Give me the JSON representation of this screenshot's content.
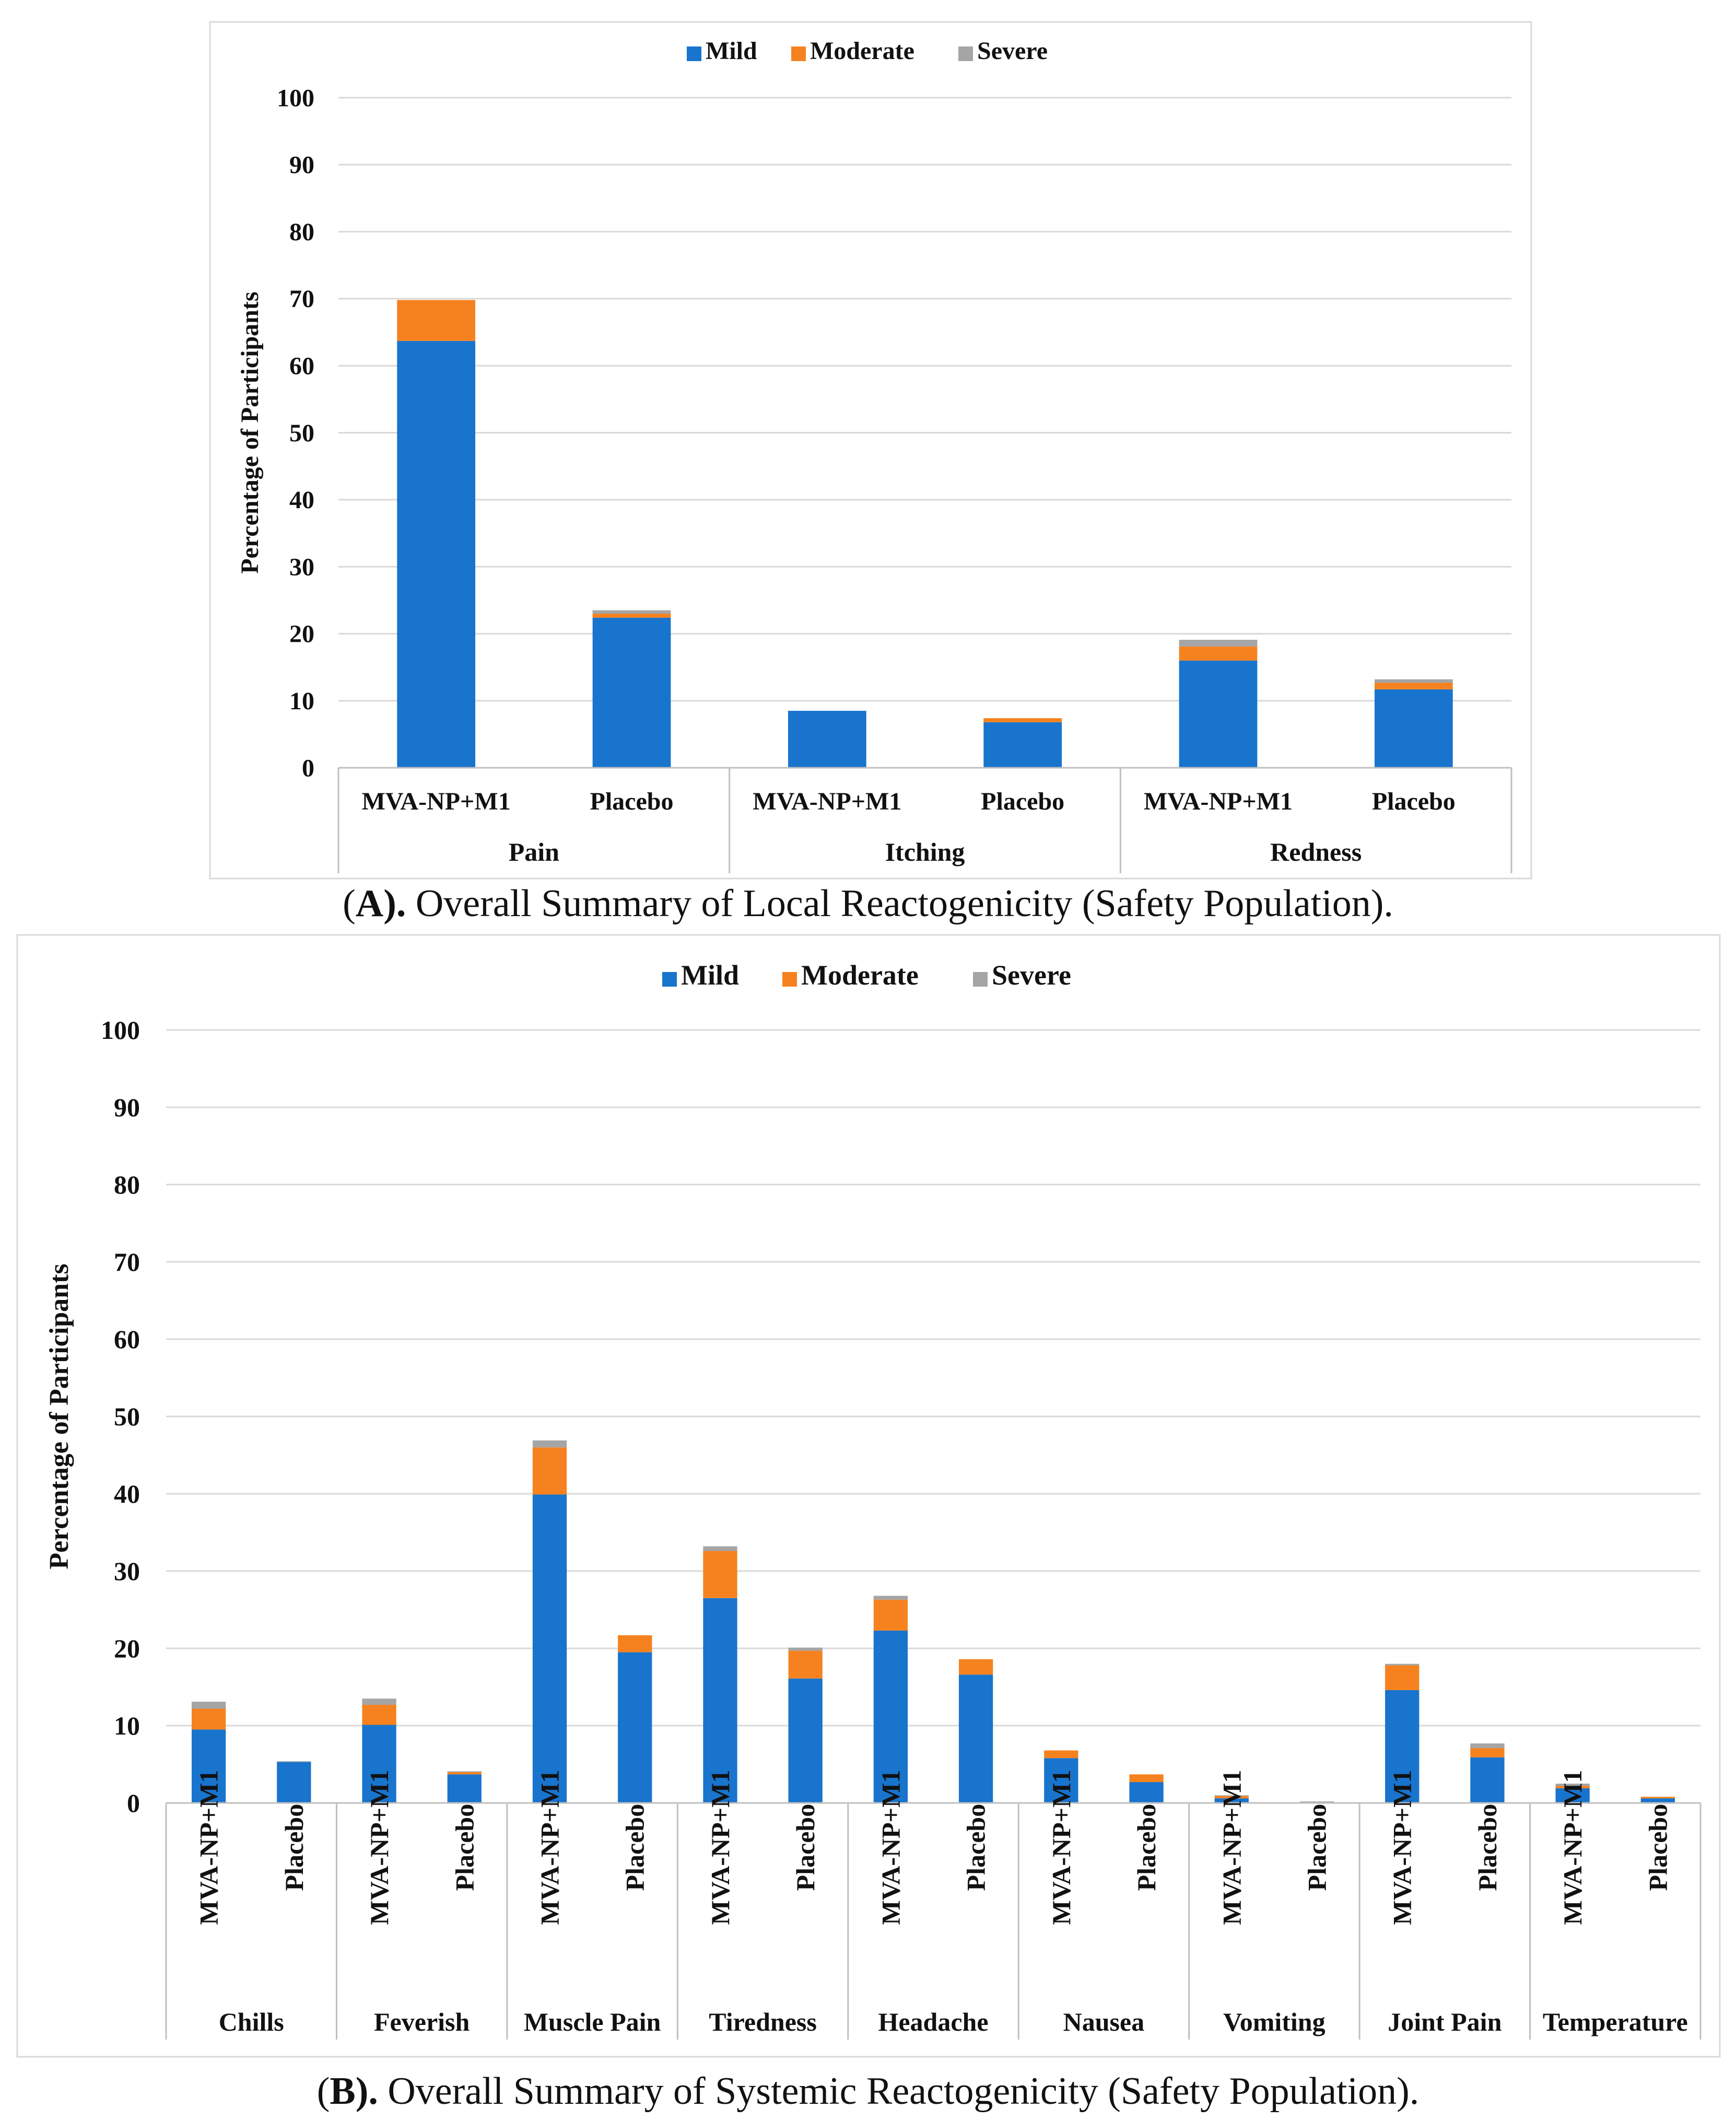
{
  "colors": {
    "mild": "#1874CD",
    "moderate": "#F5821F",
    "severe": "#A5A5A5",
    "grid": "#D9D9D9",
    "axis": "#BFBFBF",
    "frame": "#D9D9D9"
  },
  "panelA": {
    "caption_letter": "A",
    "caption_close": ").",
    "caption_text": " Overall Summary of Local Reactogenicity (Safety Population).",
    "chart_data": {
      "type": "bar",
      "stacked": true,
      "title": "",
      "ylabel": "Percentage of Participants",
      "ylim": [
        0,
        100
      ],
      "yticks": [
        0,
        10,
        20,
        30,
        40,
        50,
        60,
        70,
        80,
        90,
        100
      ],
      "legend": [
        "Mild",
        "Moderate",
        "Severe"
      ],
      "legend_position": "top-center",
      "groups": [
        "Pain",
        "Itching",
        "Redness"
      ],
      "categories": [
        "MVA-NP+M1",
        "Placebo",
        "MVA-NP+M1",
        "Placebo",
        "MVA-NP+M1",
        "Placebo"
      ],
      "series": [
        {
          "name": "Mild",
          "values": [
            63.7,
            22.4,
            8.5,
            6.8,
            16.0,
            11.7
          ]
        },
        {
          "name": "Moderate",
          "values": [
            6.1,
            0.6,
            0.0,
            0.6,
            2.1,
            1.0
          ]
        },
        {
          "name": "Severe",
          "values": [
            0.0,
            0.5,
            0.0,
            0.0,
            1.0,
            0.5
          ]
        }
      ]
    }
  },
  "panelB": {
    "caption_letter": "B",
    "caption_close": ").",
    "caption_text": " Overall Summary of Systemic Reactogenicity (Safety Population).",
    "chart_data": {
      "type": "bar",
      "stacked": true,
      "title": "",
      "ylabel": "Percentage of Participants",
      "ylim": [
        0,
        100
      ],
      "yticks": [
        0,
        10,
        20,
        30,
        40,
        50,
        60,
        70,
        80,
        90,
        100
      ],
      "legend": [
        "Mild",
        "Moderate",
        "Severe"
      ],
      "legend_position": "top-center",
      "groups": [
        "Chills",
        "Feverish",
        "Muscle Pain",
        "Tiredness",
        "Headache",
        "Nausea",
        "Vomiting",
        "Joint Pain",
        "Temperature"
      ],
      "categories": [
        "MVA-NP+M1",
        "Placebo",
        "MVA-NP+M1",
        "Placebo",
        "MVA-NP+M1",
        "Placebo",
        "MVA-NP+M1",
        "Placebo",
        "MVA-NP+M1",
        "Placebo",
        "MVA-NP+M1",
        "Placebo",
        "MVA-NP+M1",
        "Placebo",
        "MVA-NP+M1",
        "Placebo",
        "MVA-NP+M1",
        "Placebo"
      ],
      "series": [
        {
          "name": "Mild",
          "values": [
            9.5,
            5.3,
            10.1,
            3.7,
            39.9,
            19.5,
            26.5,
            16.1,
            22.3,
            16.6,
            5.8,
            2.7,
            0.6,
            0.0,
            14.6,
            5.9,
            1.9,
            0.6
          ]
        },
        {
          "name": "Moderate",
          "values": [
            2.7,
            0.0,
            2.6,
            0.3,
            6.1,
            2.2,
            6.1,
            3.6,
            4.0,
            2.0,
            1.0,
            1.0,
            0.3,
            0.0,
            3.2,
            1.2,
            0.3,
            0.2
          ]
        },
        {
          "name": "Severe",
          "values": [
            0.9,
            0.1,
            0.8,
            0.1,
            0.9,
            0.0,
            0.6,
            0.4,
            0.5,
            0.0,
            0.0,
            0.0,
            0.1,
            0.2,
            0.2,
            0.6,
            0.3,
            0.0
          ]
        }
      ]
    }
  }
}
